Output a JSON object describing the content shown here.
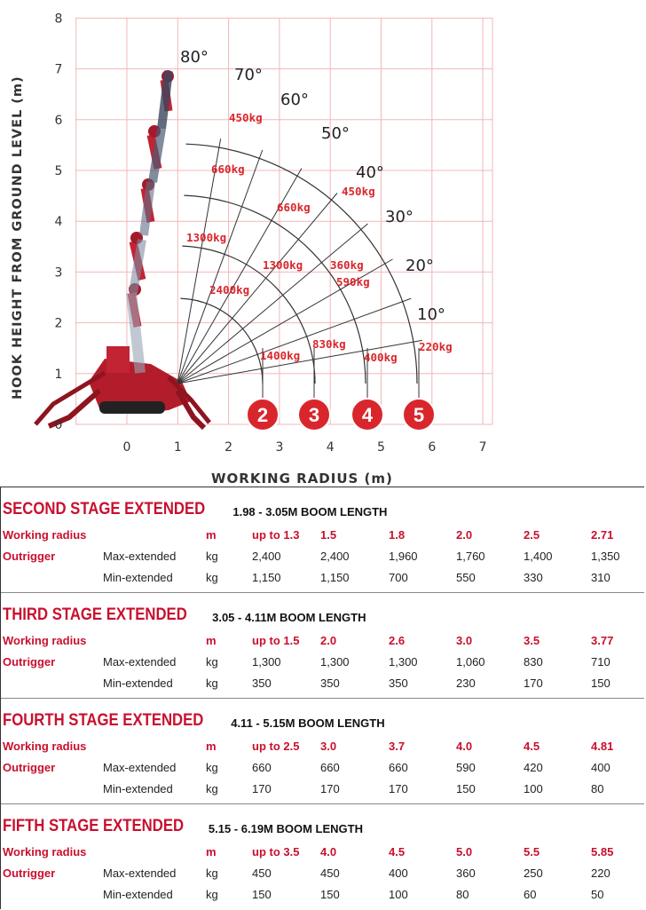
{
  "chart_data": {
    "type": "line",
    "xlabel": "WORKING RADIUS (m)",
    "ylabel": "HOOK HEIGHT FROM GROUND LEVEL (m)",
    "xlim": [
      0,
      7
    ],
    "ylim": [
      0,
      8
    ],
    "x_ticks": [
      "0",
      "1",
      "2",
      "3",
      "4",
      "5",
      "6",
      "7"
    ],
    "y_ticks": [
      "0",
      "1",
      "2",
      "3",
      "4",
      "5",
      "6",
      "7",
      "8"
    ],
    "grid": true,
    "angle_labels": [
      "80°",
      "70°",
      "60°",
      "50°",
      "40°",
      "30°",
      "20°",
      "10°"
    ],
    "boom_markers": [
      "2",
      "3",
      "4",
      "5"
    ],
    "load_labels": [
      "450kg",
      "660kg",
      "660kg",
      "450kg",
      "1300kg",
      "1300kg",
      "360kg",
      "590kg",
      "2400kg",
      "830kg",
      "1400kg",
      "400kg",
      "220kg"
    ],
    "colors": {
      "grid": "#f0b8b8",
      "arc": "#333333",
      "label": "#d9262c",
      "marker": "#d9262c",
      "axis_text": "#333333"
    }
  },
  "tables": [
    {
      "title": "SECOND STAGE EXTENDED",
      "boom": "1.98 - 3.05M BOOM LENGTH",
      "radius_label": "Working radius",
      "radius_unit": "m",
      "radii": [
        "up to 1.3",
        "1.5",
        "1.8",
        "2.0",
        "2.5",
        "2.71"
      ],
      "outrigger_label": "Outrigger",
      "max_label": "Max-extended",
      "min_label": "Min-extended",
      "unit": "kg",
      "max_values": [
        "2,400",
        "2,400",
        "1,960",
        "1,760",
        "1,400",
        "1,350"
      ],
      "min_values": [
        "1,150",
        "1,150",
        "700",
        "550",
        "330",
        "310"
      ]
    },
    {
      "title": "THIRD STAGE EXTENDED",
      "boom": "3.05 - 4.11M BOOM LENGTH",
      "radius_label": "Working radius",
      "radius_unit": "m",
      "radii": [
        "up to 1.5",
        "2.0",
        "2.6",
        "3.0",
        "3.5",
        "3.77"
      ],
      "outrigger_label": "Outrigger",
      "max_label": "Max-extended",
      "min_label": "Min-extended",
      "unit": "kg",
      "max_values": [
        "1,300",
        "1,300",
        "1,300",
        "1,060",
        "830",
        "710"
      ],
      "min_values": [
        "350",
        "350",
        "350",
        "230",
        "170",
        "150"
      ]
    },
    {
      "title": "FOURTH STAGE EXTENDED",
      "boom": "4.11 - 5.15M BOOM LENGTH",
      "radius_label": "Working radius",
      "radius_unit": "m",
      "radii": [
        "up to 2.5",
        "3.0",
        "3.7",
        "4.0",
        "4.5",
        "4.81"
      ],
      "outrigger_label": "Outrigger",
      "max_label": "Max-extended",
      "min_label": "Min-extended",
      "unit": "kg",
      "max_values": [
        "660",
        "660",
        "660",
        "590",
        "420",
        "400"
      ],
      "min_values": [
        "170",
        "170",
        "170",
        "150",
        "100",
        "80"
      ]
    },
    {
      "title": "FIFTH STAGE EXTENDED",
      "boom": "5.15 - 6.19M BOOM LENGTH",
      "radius_label": "Working radius",
      "radius_unit": "m",
      "radii": [
        "up to 3.5",
        "4.0",
        "4.5",
        "5.0",
        "5.5",
        "5.85"
      ],
      "outrigger_label": "Outrigger",
      "max_label": "Max-extended",
      "min_label": "Min-extended",
      "unit": "kg",
      "max_values": [
        "450",
        "450",
        "400",
        "360",
        "250",
        "220"
      ],
      "min_values": [
        "150",
        "150",
        "100",
        "80",
        "60",
        "50"
      ]
    }
  ]
}
